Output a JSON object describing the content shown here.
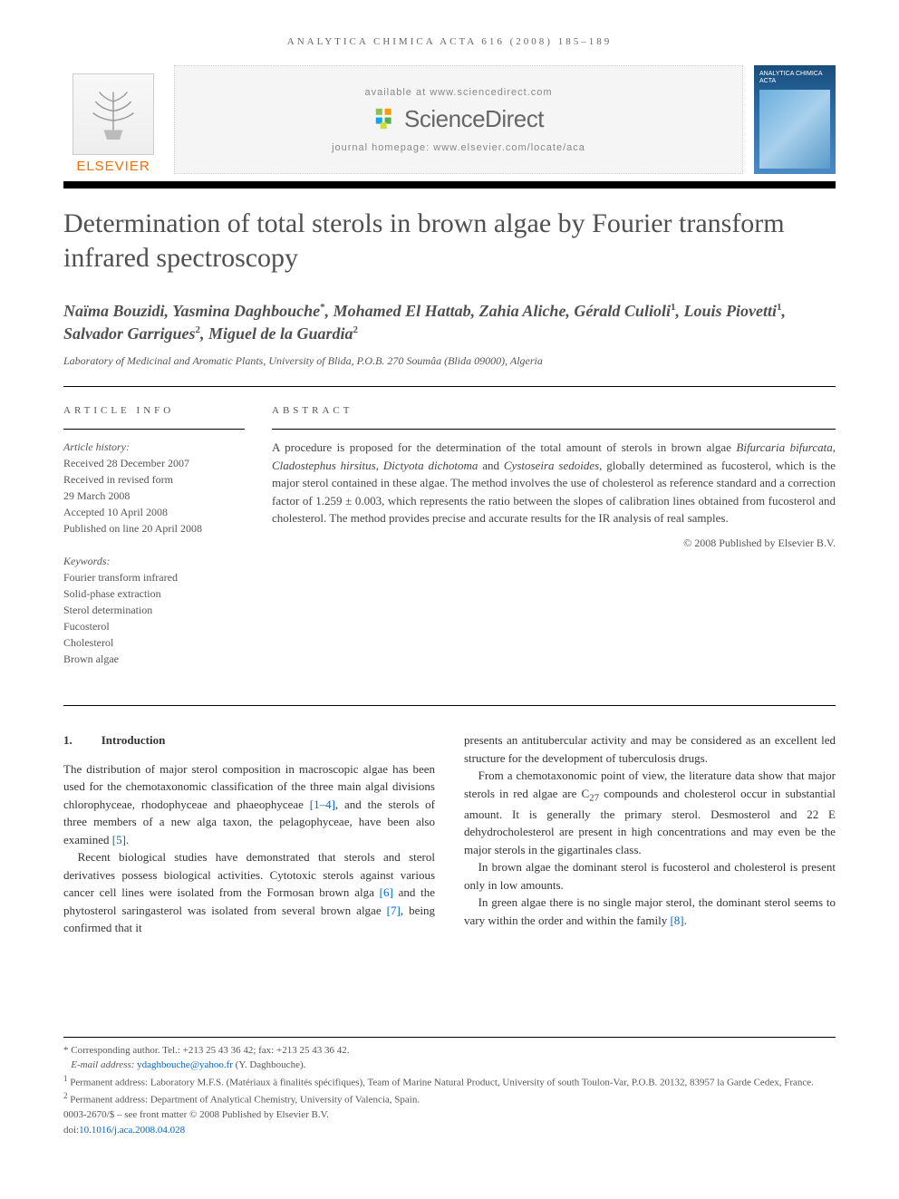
{
  "journalHeader": "ANALYTICA CHIMICA ACTA 616 (2008) 185–189",
  "masthead": {
    "elsevierLabel": "ELSEVIER",
    "availableAt": "available at www.sciencedirect.com",
    "sdLogoText": "ScienceDirect",
    "homepage": "journal homepage: www.elsevier.com/locate/aca",
    "coverTitle": "ANALYTICA CHIMICA ACTA"
  },
  "title": "Determination of total sterols in brown algae by Fourier transform infrared spectroscopy",
  "authorsHtml": "Naïma Bouzidi, Yasmina Daghbouche<sup>*</sup>, Mohamed El Hattab, Zahia Aliche, Gérald Culioli<sup>1</sup>, Louis Piovetti<sup>1</sup>, Salvador Garrigues<sup>2</sup>, Miguel de la Guardia<sup>2</sup>",
  "affiliation": "Laboratory of Medicinal and Aromatic Plants, University of Blida, P.O.B. 270 Soumâa (Blida 09000), Algeria",
  "articleInfo": {
    "label": "ARTICLE INFO",
    "historyLabel": "Article history:",
    "received": "Received 28 December 2007",
    "revised1": "Received in revised form",
    "revised2": "29 March 2008",
    "accepted": "Accepted 10 April 2008",
    "published": "Published on line 20 April 2008",
    "keywordsLabel": "Keywords:",
    "keywords": [
      "Fourier transform infrared",
      "Solid-phase extraction",
      "Sterol determination",
      "Fucosterol",
      "Cholesterol",
      "Brown algae"
    ]
  },
  "abstract": {
    "label": "ABSTRACT",
    "textHtml": "A procedure is proposed for the determination of the total amount of sterols in brown algae <em>Bifurcaria bifurcata</em>, <em>Cladostephus hirsitus</em>, <em>Dictyota dichotoma</em> and <em>Cystoseira sedoides</em>, globally determined as fucosterol, which is the major sterol contained in these algae. The method involves the use of cholesterol as reference standard and a correction factor of 1.259 ± 0.003, which represents the ratio between the slopes of calibration lines obtained from fucosterol and cholesterol. The method provides precise and accurate results for the IR analysis of real samples.",
    "copyright": "© 2008 Published by Elsevier B.V."
  },
  "body": {
    "heading_num": "1.",
    "heading_text": "Introduction",
    "leftParas": [
      "The distribution of major sterol composition in macroscopic algae has been used for the chemotaxonomic classification of the three main algal divisions chlorophyceae, rhodophyceae and phaeophyceae <span class=\"ref-link\">[1–4]</span>, and the sterols of three members of a new alga taxon, the pelagophyceae, have been also examined <span class=\"ref-link\">[5]</span>.",
      "Recent biological studies have demonstrated that sterols and sterol derivatives possess biological activities. Cytotoxic sterols against various cancer cell lines were isolated from the Formosan brown alga <span class=\"ref-link\">[6]</span> and the phytosterol saringasterol was isolated from several brown algae <span class=\"ref-link\">[7]</span>, being confirmed that it"
    ],
    "rightParas": [
      "presents an antitubercular activity and may be considered as an excellent led structure for the development of tuberculosis drugs.",
      "From a chemotaxonomic point of view, the literature data show that major sterols in red algae are C<sub>27</sub> compounds and cholesterol occur in substantial amount. It is generally the primary sterol. Desmosterol and 22 E dehydrocholesterol are present in high concentrations and may even be the major sterols in the gigartinales class.",
      "In brown algae the dominant sterol is fucosterol and cholesterol is present only in low amounts.",
      "In green algae there is no single major sterol, the dominant sterol seems to vary within the order and within the family <span class=\"ref-link\">[8]</span>."
    ]
  },
  "footnotes": {
    "corresponding": "* Corresponding author. Tel.: +213 25 43 36 42; fax: +213 25 43 36 42.",
    "emailLabel": "E-mail address:",
    "email": "ydaghbouche@yahoo.fr",
    "emailOwner": "(Y. Daghbouche).",
    "addr1": "Permanent address: Laboratory M.F.S. (Matériaux à finalités spécifiques), Team of Marine Natural Product, University of south Toulon-Var, P.O.B. 20132, 83957 la Garde Cedex, France.",
    "addr2": "Permanent address: Department of Analytical Chemistry, University of Valencia, Spain.",
    "issn": "0003-2670/$ – see front matter © 2008 Published by Elsevier B.V.",
    "doiLabel": "doi:",
    "doi": "10.1016/j.aca.2008.04.028"
  }
}
